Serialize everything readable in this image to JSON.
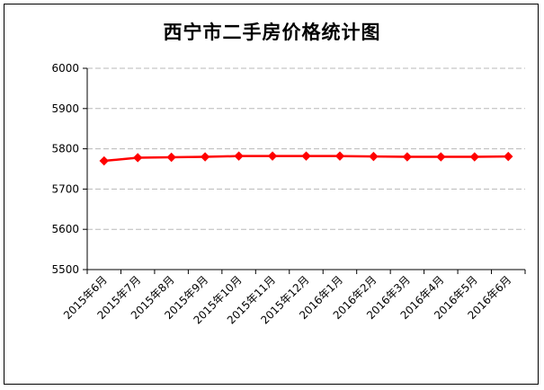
{
  "chart_data": {
    "type": "line",
    "title": "西宁市二手房价格统计图",
    "xlabel": "",
    "ylabel": "",
    "categories": [
      "2015年6月",
      "2015年7月",
      "2015年8月",
      "2015年9月",
      "2015年10月",
      "2015年11月",
      "2015年12月",
      "2016年1月",
      "2016年2月",
      "2016年3月",
      "2016年4月",
      "2016年5月",
      "2016年6月"
    ],
    "series": [
      {
        "values": [
          5770,
          5778,
          5779,
          5780,
          5782,
          5782,
          5782,
          5782,
          5781,
          5780,
          5780,
          5780,
          5781
        ],
        "color": "#ff0000"
      }
    ],
    "ylim": [
      5500,
      6000
    ],
    "yticks": [
      5500,
      5600,
      5700,
      5800,
      5900,
      6000
    ],
    "grid": true,
    "legend": "none"
  }
}
